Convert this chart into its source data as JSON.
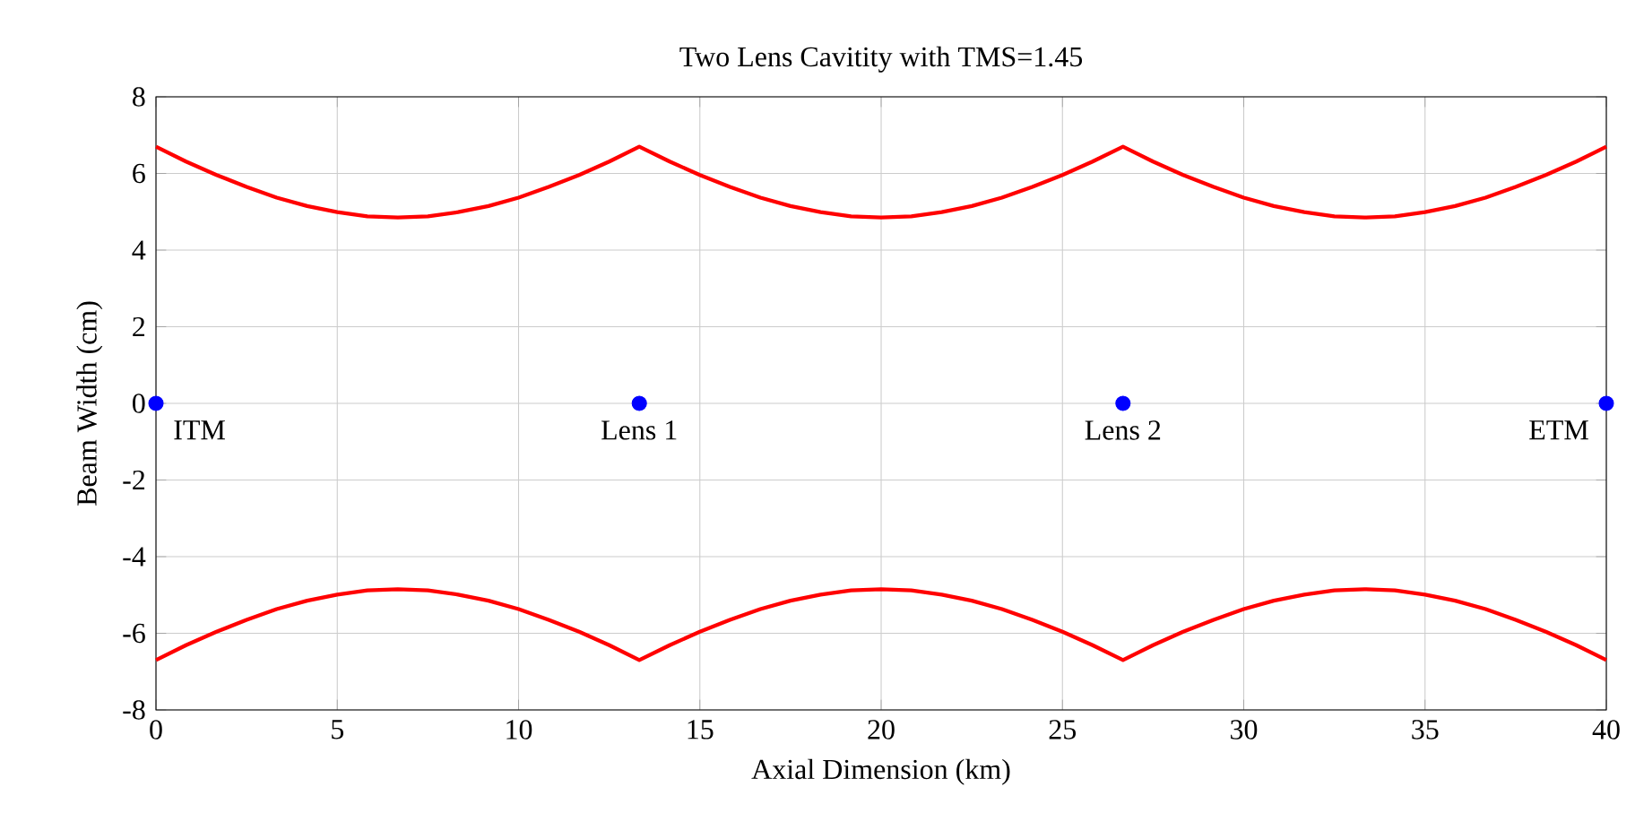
{
  "chart_data": {
    "type": "line",
    "title": "Two Lens Cavitity with TMS=1.45",
    "xlabel": "Axial Dimension (km)",
    "ylabel": "Beam Width (cm)",
    "xlim": [
      0,
      40
    ],
    "ylim": [
      -8,
      8
    ],
    "xticks": [
      0,
      5,
      10,
      15,
      20,
      25,
      30,
      35,
      40
    ],
    "yticks": [
      -8,
      -6,
      -4,
      -2,
      0,
      2,
      4,
      6,
      8
    ],
    "grid": true,
    "marker": "none",
    "line_style": "solid",
    "series": [
      {
        "color": "#ff0000",
        "x": [
          0,
          0.83,
          1.67,
          2.5,
          3.33,
          4.17,
          5,
          5.83,
          6.67,
          7.5,
          8.33,
          9.17,
          10,
          10.83,
          11.67,
          12.5,
          13.33,
          14.17,
          15,
          15.83,
          16.67,
          17.5,
          18.33,
          19.17,
          20,
          20.83,
          21.67,
          22.5,
          23.33,
          24.17,
          25,
          25.83,
          26.67,
          27.5,
          28.33,
          29.17,
          30,
          30.83,
          31.67,
          32.5,
          33.33,
          34.17,
          35,
          35.83,
          36.67,
          37.5,
          38.33,
          39.17,
          40
        ],
        "values": [
          6.7,
          6.31,
          5.96,
          5.65,
          5.37,
          5.15,
          4.99,
          4.88,
          4.85,
          4.88,
          4.99,
          5.15,
          5.37,
          5.65,
          5.96,
          6.31,
          6.7,
          6.31,
          5.96,
          5.65,
          5.37,
          5.15,
          4.99,
          4.88,
          4.85,
          4.88,
          4.99,
          5.15,
          5.37,
          5.65,
          5.96,
          6.31,
          6.7,
          6.31,
          5.96,
          5.65,
          5.37,
          5.15,
          4.99,
          4.88,
          4.85,
          4.88,
          4.99,
          5.15,
          5.37,
          5.65,
          5.96,
          6.31,
          6.7
        ]
      },
      {
        "color": "#ff0000",
        "x": [
          0,
          0.83,
          1.67,
          2.5,
          3.33,
          4.17,
          5,
          5.83,
          6.67,
          7.5,
          8.33,
          9.17,
          10,
          10.83,
          11.67,
          12.5,
          13.33,
          14.17,
          15,
          15.83,
          16.67,
          17.5,
          18.33,
          19.17,
          20,
          20.83,
          21.67,
          22.5,
          23.33,
          24.17,
          25,
          25.83,
          26.67,
          27.5,
          28.33,
          29.17,
          30,
          30.83,
          31.67,
          32.5,
          33.33,
          34.17,
          35,
          35.83,
          36.67,
          37.5,
          38.33,
          39.17,
          40
        ],
        "values": [
          -6.7,
          -6.31,
          -5.96,
          -5.65,
          -5.37,
          -5.15,
          -4.99,
          -4.88,
          -4.85,
          -4.88,
          -4.99,
          -5.15,
          -5.37,
          -5.65,
          -5.96,
          -6.31,
          -6.7,
          -6.31,
          -5.96,
          -5.65,
          -5.37,
          -5.15,
          -4.99,
          -4.88,
          -4.85,
          -4.88,
          -4.99,
          -5.15,
          -5.37,
          -5.65,
          -5.96,
          -6.31,
          -6.7,
          -6.31,
          -5.96,
          -5.65,
          -5.37,
          -5.15,
          -4.99,
          -4.88,
          -4.85,
          -4.88,
          -4.99,
          -5.15,
          -5.37,
          -5.65,
          -5.96,
          -6.31,
          -6.7
        ]
      },
      {
        "type": "scatter",
        "marker": "circle",
        "color": "#0000ff",
        "x": [
          0,
          13.33,
          26.67,
          40
        ],
        "values": [
          0,
          0,
          0,
          0
        ]
      }
    ],
    "annotations": [
      {
        "text": "ITM",
        "x": 0,
        "y": 0
      },
      {
        "text": "Lens 1",
        "x": 13.33,
        "y": 0
      },
      {
        "text": "Lens 2",
        "x": 26.67,
        "y": 0
      },
      {
        "text": "ETM",
        "x": 40,
        "y": 0
      }
    ]
  }
}
